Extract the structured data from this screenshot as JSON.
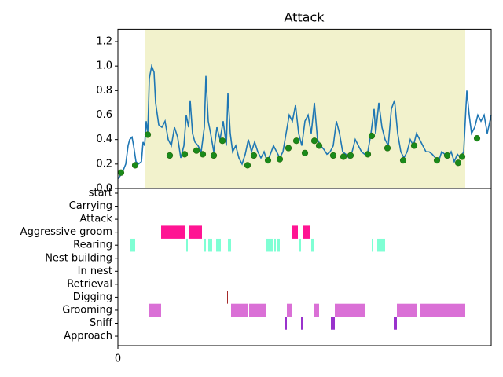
{
  "chart_data": [
    {
      "type": "line",
      "title": "Attack",
      "x": [
        0,
        5,
        10,
        13,
        15,
        18,
        20,
        23,
        26,
        30,
        32,
        34,
        36,
        38,
        40,
        43,
        46,
        48,
        52,
        56,
        60,
        64,
        68,
        72,
        76,
        80,
        84,
        87,
        90,
        92,
        95,
        98,
        102,
        106,
        110,
        112,
        115,
        118,
        122,
        126,
        130,
        134,
        138,
        140,
        143,
        146,
        150,
        154,
        158,
        162,
        166,
        170,
        174,
        178,
        182,
        186,
        190,
        194,
        198,
        202,
        206,
        210,
        214,
        218,
        222,
        226,
        230,
        234,
        238,
        242,
        246,
        250,
        254,
        258,
        262,
        266,
        270,
        274,
        278,
        282,
        286,
        290,
        294,
        298,
        302,
        306,
        310,
        314,
        318,
        322,
        326,
        328,
        332,
        336,
        340,
        344,
        348,
        352,
        356,
        360,
        364,
        368,
        372,
        376,
        380,
        384,
        388,
        392,
        396,
        400,
        404,
        408,
        412,
        416,
        420,
        424,
        428,
        432,
        436,
        440,
        444,
        447,
        450,
        454,
        458,
        462,
        466,
        470,
        475
      ],
      "values": [
        0.08,
        0.12,
        0.2,
        0.35,
        0.4,
        0.42,
        0.35,
        0.22,
        0.2,
        0.22,
        0.38,
        0.35,
        0.55,
        0.45,
        0.9,
        1.0,
        0.95,
        0.7,
        0.52,
        0.5,
        0.55,
        0.4,
        0.35,
        0.5,
        0.42,
        0.25,
        0.35,
        0.6,
        0.5,
        0.72,
        0.45,
        0.38,
        0.35,
        0.3,
        0.5,
        0.92,
        0.55,
        0.45,
        0.3,
        0.5,
        0.4,
        0.55,
        0.35,
        0.78,
        0.45,
        0.3,
        0.35,
        0.25,
        0.2,
        0.28,
        0.4,
        0.3,
        0.38,
        0.3,
        0.25,
        0.3,
        0.22,
        0.28,
        0.35,
        0.3,
        0.25,
        0.3,
        0.45,
        0.6,
        0.55,
        0.68,
        0.45,
        0.35,
        0.55,
        0.6,
        0.45,
        0.7,
        0.4,
        0.35,
        0.32,
        0.28,
        0.3,
        0.35,
        0.55,
        0.45,
        0.3,
        0.28,
        0.25,
        0.3,
        0.4,
        0.35,
        0.3,
        0.28,
        0.3,
        0.45,
        0.65,
        0.45,
        0.7,
        0.5,
        0.4,
        0.35,
        0.65,
        0.72,
        0.45,
        0.3,
        0.25,
        0.3,
        0.4,
        0.35,
        0.45,
        0.4,
        0.35,
        0.3,
        0.3,
        0.28,
        0.25,
        0.22,
        0.3,
        0.28,
        0.25,
        0.3,
        0.22,
        0.28,
        0.25,
        0.3,
        0.8,
        0.6,
        0.45,
        0.5,
        0.6,
        0.55,
        0.6,
        0.45,
        0.6
      ],
      "color": "#1f77b4",
      "points": {
        "color": "#1a8a1a",
        "x": [
          4,
          22,
          38,
          66,
          85,
          100,
          108,
          122,
          133,
          165,
          173,
          191,
          206,
          217,
          227,
          238,
          250,
          256,
          274,
          287,
          296,
          318,
          323,
          343,
          363,
          377,
          406,
          419,
          433,
          438,
          457
        ],
        "values": [
          0.13,
          0.19,
          0.44,
          0.27,
          0.28,
          0.31,
          0.28,
          0.27,
          0.39,
          0.19,
          0.27,
          0.23,
          0.24,
          0.33,
          0.39,
          0.29,
          0.39,
          0.35,
          0.27,
          0.26,
          0.27,
          0.28,
          0.43,
          0.33,
          0.23,
          0.35,
          0.23,
          0.27,
          0.21,
          0.26,
          0.41
        ]
      },
      "span": [
        34,
        442
      ],
      "span_color": "#f2f2cc",
      "xlim": [
        0,
        475
      ],
      "ylim": [
        0,
        1.3
      ],
      "yticks": [
        {
          "value": 0,
          "label": "0.0"
        },
        {
          "value": 0.2,
          "label": "0.2"
        },
        {
          "value": 0.4,
          "label": "0.4"
        },
        {
          "value": 0.6,
          "label": "0.6"
        },
        {
          "value": 0.8,
          "label": "0.8"
        },
        {
          "value": 1.0,
          "label": "1.0"
        },
        {
          "value": 1.2,
          "label": "1.2"
        }
      ]
    },
    {
      "type": "ethogram",
      "categories": [
        "start",
        "Carrying",
        "Attack",
        "Aggressive groom",
        "Rearing",
        "Nest building",
        "In nest",
        "Retrieval",
        "Digging",
        "Grooming",
        "Sniff",
        "Approach"
      ],
      "colors": [
        null,
        null,
        null,
        "#ff1493",
        "#7fffd4",
        null,
        null,
        null,
        "#a52a2a",
        "#da70d6",
        "#9932cc",
        null
      ],
      "intervals": [
        [],
        [],
        [],
        [
          [
            55,
            86
          ],
          [
            90,
            107
          ],
          [
            222,
            229
          ],
          [
            235,
            244
          ]
        ],
        [
          [
            15,
            22
          ],
          [
            87,
            89
          ],
          [
            110,
            112
          ],
          [
            115,
            120
          ],
          [
            125,
            127
          ],
          [
            128,
            131
          ],
          [
            140,
            144
          ],
          [
            189,
            197
          ],
          [
            199,
            201
          ],
          [
            202,
            206
          ],
          [
            230,
            233
          ],
          [
            246,
            249
          ],
          [
            323,
            325
          ],
          [
            330,
            340
          ]
        ],
        [],
        [],
        [],
        [
          [
            139,
            140
          ]
        ],
        [
          [
            40,
            55
          ],
          [
            144,
            165
          ],
          [
            167,
            189
          ],
          [
            215,
            222
          ],
          [
            249,
            256
          ],
          [
            276,
            315
          ],
          [
            355,
            380
          ],
          [
            385,
            442
          ]
        ],
        [
          [
            39,
            40
          ],
          [
            212,
            215
          ],
          [
            233,
            235
          ],
          [
            271,
            276
          ],
          [
            351,
            355
          ]
        ],
        []
      ],
      "xlim": [
        0,
        475
      ],
      "xticks": [
        0
      ]
    }
  ]
}
